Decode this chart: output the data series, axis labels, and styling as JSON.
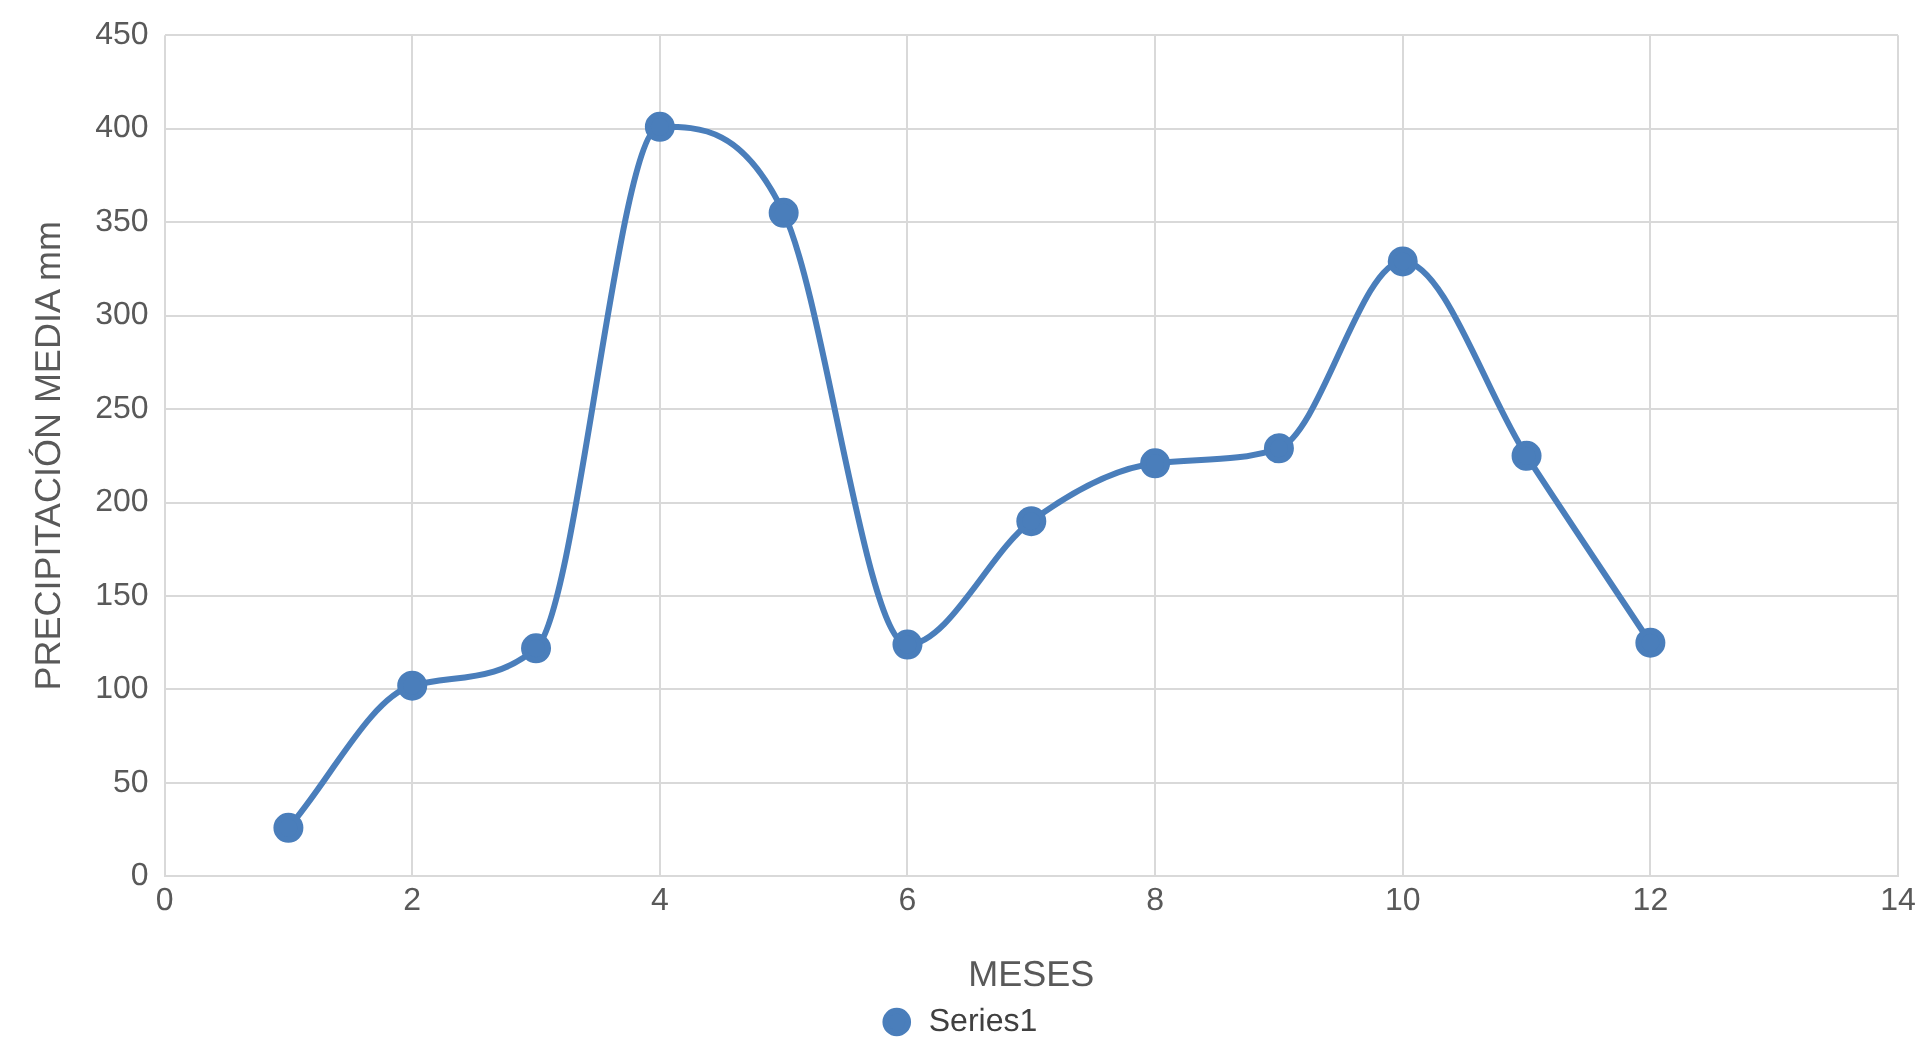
{
  "chart_data": {
    "type": "line",
    "xlabel": "MESES",
    "ylabel": "PRECIPITACIÓN MEDIA mm",
    "x": [
      1,
      2,
      3,
      4,
      5,
      6,
      7,
      8,
      9,
      10,
      11,
      12
    ],
    "series": [
      {
        "name": "Series1",
        "color": "#4a7ebb",
        "values": [
          26,
          102,
          122,
          401,
          355,
          124,
          190,
          221,
          229,
          329,
          225,
          125
        ]
      }
    ],
    "xlim": [
      0,
      14
    ],
    "xticks": [
      0,
      2,
      4,
      6,
      8,
      10,
      12,
      14
    ],
    "ylim": [
      0,
      450
    ],
    "yticks": [
      0,
      50,
      100,
      150,
      200,
      250,
      300,
      350,
      400,
      450
    ],
    "grid": true,
    "legend": "bottom",
    "marker": "circle",
    "line_style": "solid"
  }
}
